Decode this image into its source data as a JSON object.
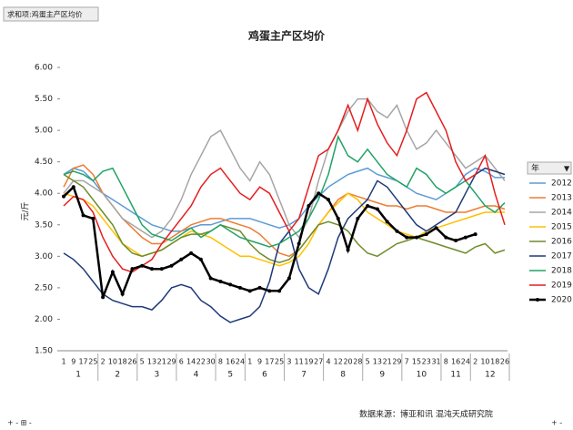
{
  "pivot_button": "求和项:鸡蛋主产区均价",
  "chart_data": {
    "type": "line",
    "title": "鸡蛋主产区均价",
    "y_label": "元/斤",
    "legend_title": "年",
    "legend": "right",
    "source": "数据来源：博亚和讯 混沌天成研究院",
    "categories": [
      {
        "label": "1",
        "group": "1"
      },
      {
        "label": "9",
        "group": "1"
      },
      {
        "label": "17",
        "group": "1"
      },
      {
        "label": "25",
        "group": "1"
      },
      {
        "label": "2",
        "group": "2"
      },
      {
        "label": "10",
        "group": "2"
      },
      {
        "label": "18",
        "group": "2"
      },
      {
        "label": "26",
        "group": "2"
      },
      {
        "label": "5",
        "group": "3"
      },
      {
        "label": "13",
        "group": "3"
      },
      {
        "label": "21",
        "group": "3"
      },
      {
        "label": "29",
        "group": "3"
      },
      {
        "label": "6",
        "group": "4"
      },
      {
        "label": "14",
        "group": "4"
      },
      {
        "label": "22",
        "group": "4"
      },
      {
        "label": "30",
        "group": "4"
      },
      {
        "label": "8",
        "group": "5"
      },
      {
        "label": "16",
        "group": "5"
      },
      {
        "label": "24",
        "group": "5"
      },
      {
        "label": "1",
        "group": "6"
      },
      {
        "label": "9",
        "group": "6"
      },
      {
        "label": "17",
        "group": "6"
      },
      {
        "label": "25",
        "group": "6"
      },
      {
        "label": "3",
        "group": "7"
      },
      {
        "label": "11",
        "group": "7"
      },
      {
        "label": "19",
        "group": "7"
      },
      {
        "label": "27",
        "group": "7"
      },
      {
        "label": "4",
        "group": "8"
      },
      {
        "label": "12",
        "group": "8"
      },
      {
        "label": "20",
        "group": "8"
      },
      {
        "label": "28",
        "group": "8"
      },
      {
        "label": "5",
        "group": "9"
      },
      {
        "label": "13",
        "group": "9"
      },
      {
        "label": "21",
        "group": "9"
      },
      {
        "label": "29",
        "group": "9"
      },
      {
        "label": "7",
        "group": "10"
      },
      {
        "label": "15",
        "group": "10"
      },
      {
        "label": "23",
        "group": "10"
      },
      {
        "label": "31",
        "group": "10"
      },
      {
        "label": "8",
        "group": "11"
      },
      {
        "label": "16",
        "group": "11"
      },
      {
        "label": "24",
        "group": "11"
      },
      {
        "label": "2",
        "group": "12"
      },
      {
        "label": "10",
        "group": "12"
      },
      {
        "label": "18",
        "group": "12"
      },
      {
        "label": "26",
        "group": "12"
      }
    ],
    "ylim": [
      1.5,
      6.0
    ],
    "yticks": [
      {
        "value": 1.5,
        "label": "1.50"
      },
      {
        "value": 2.0,
        "label": "2.00"
      },
      {
        "value": 2.5,
        "label": "2.50"
      },
      {
        "value": 3.0,
        "label": "3.00"
      },
      {
        "value": 3.5,
        "label": "3.50"
      },
      {
        "value": 4.0,
        "label": "4.00"
      },
      {
        "value": 4.5,
        "label": "4.50"
      },
      {
        "value": 5.0,
        "label": "5.00"
      },
      {
        "value": 5.5,
        "label": "5.50"
      },
      {
        "value": 6.0,
        "label": "6.00"
      }
    ],
    "series": [
      {
        "name": "2012",
        "color": "#5b9bd5",
        "values": [
          4.3,
          4.4,
          4.35,
          4.2,
          4.0,
          3.9,
          3.8,
          3.7,
          3.6,
          3.5,
          3.45,
          3.4,
          3.4,
          3.45,
          3.5,
          3.5,
          3.55,
          3.6,
          3.6,
          3.6,
          3.55,
          3.5,
          3.45,
          3.5,
          3.6,
          3.8,
          3.95,
          4.1,
          4.2,
          4.3,
          4.35,
          4.4,
          4.3,
          4.25,
          4.2,
          4.1,
          4.0,
          3.95,
          3.9,
          4.0,
          4.1,
          4.3,
          4.4,
          4.35,
          4.25,
          4.25
        ]
      },
      {
        "name": "2013",
        "color": "#ed7d31",
        "values": [
          4.1,
          4.4,
          4.45,
          4.3,
          4.0,
          3.8,
          3.6,
          3.45,
          3.3,
          3.2,
          3.2,
          3.3,
          3.4,
          3.5,
          3.55,
          3.6,
          3.6,
          3.55,
          3.5,
          3.45,
          3.35,
          3.2,
          3.05,
          3.0,
          3.1,
          3.3,
          3.5,
          3.7,
          3.9,
          4.0,
          3.95,
          3.9,
          3.85,
          3.8,
          3.8,
          3.75,
          3.8,
          3.8,
          3.75,
          3.7,
          3.7,
          3.7,
          3.75,
          3.8,
          3.8,
          3.75
        ]
      },
      {
        "name": "2014",
        "color": "#a5a5a5",
        "values": [
          4.0,
          4.2,
          4.2,
          4.1,
          4.0,
          3.8,
          3.6,
          3.5,
          3.4,
          3.3,
          3.4,
          3.6,
          3.9,
          4.3,
          4.6,
          4.9,
          5.0,
          4.7,
          4.4,
          4.2,
          4.5,
          4.3,
          3.9,
          3.5,
          3.3,
          3.6,
          4.2,
          4.7,
          5.0,
          5.3,
          5.5,
          5.5,
          5.3,
          5.2,
          5.4,
          5.0,
          4.7,
          4.8,
          5.0,
          4.8,
          4.6,
          4.4,
          4.5,
          4.6,
          4.4,
          4.2
        ]
      },
      {
        "name": "2015",
        "color": "#ffc000",
        "values": [
          4.0,
          3.95,
          3.9,
          3.8,
          3.6,
          3.4,
          3.2,
          3.1,
          3.0,
          3.05,
          3.1,
          3.2,
          3.3,
          3.4,
          3.35,
          3.3,
          3.2,
          3.1,
          3.0,
          3.0,
          2.95,
          2.9,
          2.85,
          2.9,
          3.0,
          3.2,
          3.5,
          3.7,
          3.85,
          4.0,
          3.9,
          3.7,
          3.6,
          3.5,
          3.4,
          3.35,
          3.3,
          3.4,
          3.45,
          3.5,
          3.55,
          3.6,
          3.65,
          3.7,
          3.7,
          3.7
        ]
      },
      {
        "name": "2016",
        "color": "#6e8b2a",
        "values": [
          4.3,
          4.2,
          4.1,
          3.9,
          3.7,
          3.5,
          3.2,
          3.05,
          3.0,
          3.05,
          3.1,
          3.2,
          3.3,
          3.35,
          3.35,
          3.4,
          3.5,
          3.45,
          3.4,
          3.2,
          3.05,
          2.95,
          2.9,
          2.95,
          3.1,
          3.3,
          3.5,
          3.55,
          3.5,
          3.4,
          3.2,
          3.05,
          3.0,
          3.1,
          3.2,
          3.25,
          3.3,
          3.25,
          3.2,
          3.15,
          3.1,
          3.05,
          3.15,
          3.2,
          3.05,
          3.1
        ]
      },
      {
        "name": "2017",
        "color": "#1f3a7a",
        "values": [
          3.05,
          2.95,
          2.8,
          2.6,
          2.4,
          2.3,
          2.25,
          2.2,
          2.2,
          2.15,
          2.3,
          2.5,
          2.55,
          2.5,
          2.3,
          2.2,
          2.05,
          1.95,
          2.0,
          2.05,
          2.2,
          2.6,
          3.2,
          3.4,
          2.8,
          2.5,
          2.4,
          2.8,
          3.3,
          3.6,
          3.75,
          3.9,
          4.2,
          4.1,
          3.9,
          3.7,
          3.5,
          3.4,
          3.5,
          3.6,
          3.7,
          4.0,
          4.3,
          4.4,
          4.35,
          4.3
        ]
      },
      {
        "name": "2018",
        "color": "#21a366",
        "values": [
          4.3,
          4.35,
          4.3,
          4.2,
          4.35,
          4.4,
          4.1,
          3.8,
          3.5,
          3.35,
          3.3,
          3.25,
          3.35,
          3.45,
          3.3,
          3.4,
          3.5,
          3.4,
          3.3,
          3.25,
          3.2,
          3.15,
          3.2,
          3.3,
          3.4,
          3.6,
          3.9,
          4.3,
          4.9,
          4.6,
          4.5,
          4.7,
          4.5,
          4.3,
          4.2,
          4.1,
          4.4,
          4.3,
          4.1,
          4.0,
          4.1,
          4.2,
          4.0,
          3.8,
          3.7,
          3.85
        ]
      },
      {
        "name": "2019",
        "color": "#e41e1e",
        "values": [
          3.8,
          3.95,
          3.9,
          3.7,
          3.3,
          3.0,
          2.8,
          2.75,
          2.85,
          2.95,
          3.2,
          3.4,
          3.6,
          3.8,
          4.1,
          4.3,
          4.4,
          4.2,
          4.0,
          3.9,
          4.1,
          4.0,
          3.7,
          3.4,
          3.6,
          4.1,
          4.6,
          4.7,
          5.0,
          5.4,
          5.0,
          5.5,
          5.1,
          4.8,
          4.6,
          5.0,
          5.5,
          5.6,
          5.3,
          5.0,
          4.5,
          4.2,
          4.3,
          4.6,
          4.0,
          3.5
        ]
      },
      {
        "name": "2020",
        "color": "#000000",
        "values": [
          3.95,
          4.1,
          3.65,
          3.6,
          2.35,
          2.75,
          2.4,
          2.8,
          2.85,
          2.8,
          2.8,
          2.85,
          2.95,
          3.05,
          2.95,
          2.65,
          2.6,
          2.55,
          2.5,
          2.45,
          2.5,
          2.45,
          2.45,
          2.65,
          3.2,
          3.8,
          4.0,
          3.9,
          3.6,
          3.1,
          3.6,
          3.8,
          3.75,
          3.55,
          3.4,
          3.3,
          3.3,
          3.35,
          3.45,
          3.3,
          3.25,
          3.3,
          3.35,
          null,
          null,
          null
        ]
      }
    ]
  }
}
